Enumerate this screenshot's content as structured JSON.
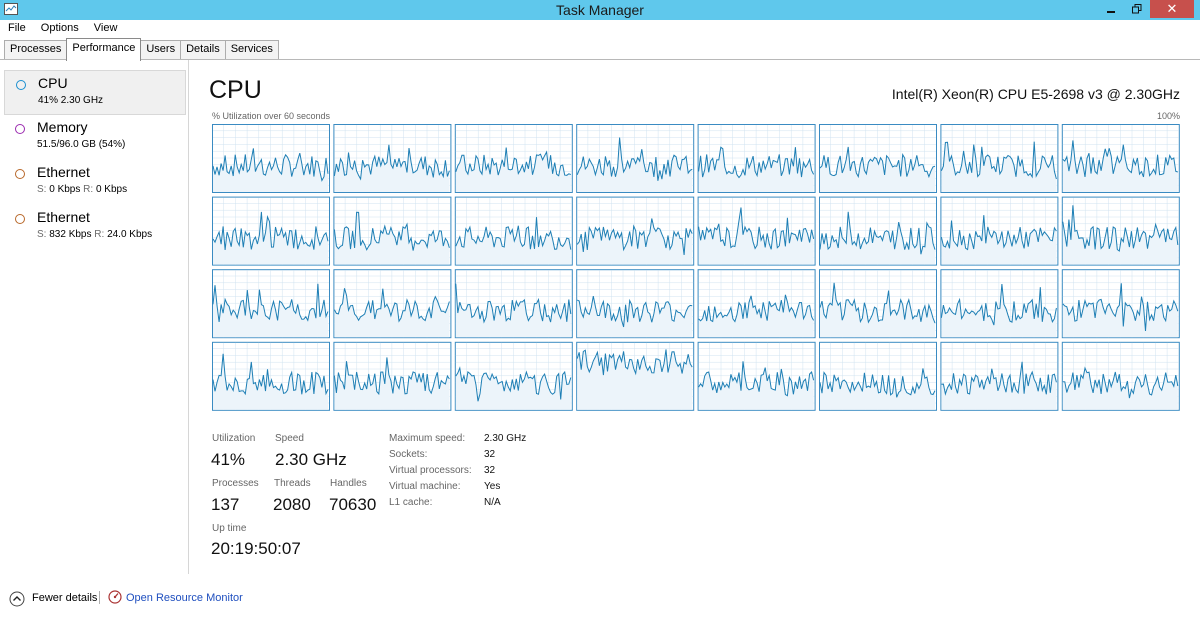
{
  "window": {
    "title": "Task Manager"
  },
  "menu": [
    "File",
    "Options",
    "View"
  ],
  "tabs": [
    "Processes",
    "Performance",
    "Users",
    "Details",
    "Services"
  ],
  "sidebar": [
    {
      "name": "CPU",
      "sub": "41%  2.30 GHz",
      "color": "#1a8fd0"
    },
    {
      "name": "Memory",
      "sub": "51.5/96.0 GB (54%)",
      "color": "#9c2cb0"
    },
    {
      "name": "Ethernet",
      "sub_s": "S:",
      "sub_s_val": "0 Kbps",
      "sub_r": "R:",
      "sub_r_val": "0 Kbps",
      "color": "#b8682a"
    },
    {
      "name": "Ethernet",
      "sub_s": "S:",
      "sub_s_val": "832 Kbps",
      "sub_r": "R:",
      "sub_r_val": "24.0 Kbps",
      "color": "#b8682a"
    }
  ],
  "main": {
    "title": "CPU",
    "cpu_model": "Intel(R) Xeon(R) CPU E5-2698 v3 @ 2.30GHz",
    "util_label": "% Utilization over 60 seconds",
    "max_label": "100%",
    "graph_count": 32,
    "graph_colors": {
      "line": "#1e7fb5",
      "fill": "#ecf4fa",
      "grid": "#d0e3f0",
      "border": "#3a8bc2"
    }
  },
  "stats": {
    "utilization": {
      "label": "Utilization",
      "value": "41%"
    },
    "speed": {
      "label": "Speed",
      "value": "2.30 GHz"
    },
    "processes": {
      "label": "Processes",
      "value": "137"
    },
    "threads": {
      "label": "Threads",
      "value": "2080"
    },
    "handles": {
      "label": "Handles",
      "value": "70630"
    },
    "uptime": {
      "label": "Up time",
      "value": "20:19:50:07"
    }
  },
  "details": [
    {
      "label": "Maximum speed:",
      "value": "2.30 GHz"
    },
    {
      "label": "Sockets:",
      "value": "32"
    },
    {
      "label": "Virtual processors:",
      "value": "32"
    },
    {
      "label": "Virtual machine:",
      "value": "Yes"
    },
    {
      "label": "L1 cache:",
      "value": "N/A"
    }
  ],
  "footer": {
    "fewer_details": "Fewer details",
    "resource_monitor": "Open Resource Monitor"
  }
}
